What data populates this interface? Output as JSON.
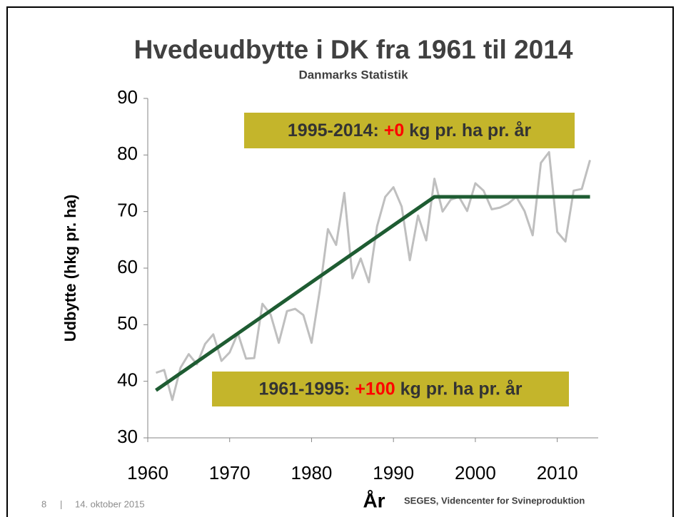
{
  "chart_data": {
    "type": "line",
    "title": "Hvedeudbytte i DK fra 1961 til 2014",
    "subtitle": "Danmarks Statistik",
    "x_label": "År",
    "y_label": "Udbytte (hkg pr. ha)",
    "x": [
      1961,
      1962,
      1963,
      1964,
      1965,
      1966,
      1967,
      1968,
      1969,
      1970,
      1971,
      1972,
      1973,
      1974,
      1975,
      1976,
      1977,
      1978,
      1979,
      1980,
      1981,
      1982,
      1983,
      1984,
      1985,
      1986,
      1987,
      1988,
      1989,
      1990,
      1991,
      1992,
      1993,
      1994,
      1995,
      1996,
      1997,
      1998,
      1999,
      2000,
      2001,
      2002,
      2003,
      2004,
      2005,
      2006,
      2007,
      2008,
      2009,
      2010,
      2011,
      2012,
      2013,
      2014
    ],
    "series": [
      {
        "color": "#bfbfbf",
        "values": [
          41.5,
          42,
          36.7,
          42.4,
          44.8,
          43,
          46.6,
          48.3,
          43.6,
          45.1,
          48.5,
          44,
          44.1,
          53.7,
          51.8,
          46.8,
          52.4,
          52.8,
          51.7,
          46.8,
          56,
          66.9,
          64.1,
          73.3,
          58.2,
          61.7,
          57.5,
          67.4,
          72.6,
          74.3,
          70.9,
          61.4,
          69.3,
          64.9,
          75.8,
          70,
          72.1,
          72.6,
          70.1,
          75,
          73.7,
          70.4,
          70.7,
          71.4,
          72.6,
          70.1,
          65.8,
          78.6,
          80.5,
          66.4,
          64.7,
          73.7,
          74,
          79.1
        ]
      }
    ],
    "trend": {
      "color": "#1e5c32",
      "x": [
        1961,
        1995,
        2014
      ],
      "values": [
        38.4,
        72.6,
        72.6
      ]
    },
    "xlim": [
      1960,
      2015
    ],
    "xticks": [
      1960,
      1970,
      1980,
      1990,
      2000,
      2010
    ],
    "ylim": [
      30,
      90
    ],
    "yticks": [
      30,
      40,
      50,
      60,
      70,
      80,
      90
    ],
    "annotations": [
      {
        "parts": [
          "1995-2014: ",
          "+0",
          " kg pr. ha pr. år"
        ],
        "highlight": 1,
        "highlight_color": "#ff0000",
        "box_color": "#c4b52b"
      },
      {
        "parts": [
          "1961-1995: ",
          "+100",
          " kg pr. ha pr. år"
        ],
        "highlight": 1,
        "highlight_color": "#ff0000",
        "box_color": "#c4b52b"
      }
    ]
  },
  "footer": {
    "page": "8",
    "separator": "|",
    "date": "14. oktober 2015",
    "organization": "SEGES, Videncenter for Svineproduktion"
  }
}
